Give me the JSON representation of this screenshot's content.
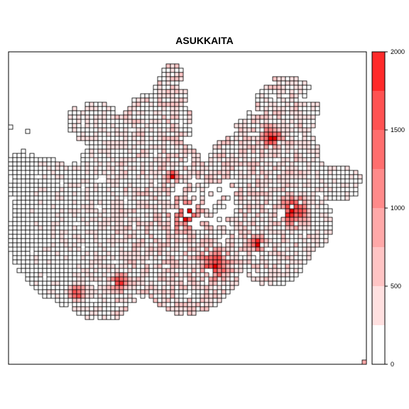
{
  "chart_data": {
    "type": "heatmap",
    "title": "ASUKKAITA",
    "grid": false,
    "legend_placement": "right",
    "scale": {
      "min": 0,
      "max": 2000,
      "ticks": [
        "0",
        "500",
        "1000",
        "1500",
        "2000"
      ],
      "bands": [
        {
          "from": 0,
          "to": 250,
          "color": "#ffffff"
        },
        {
          "from": 250,
          "to": 500,
          "color": "#ffe0e0"
        },
        {
          "from": 500,
          "to": 750,
          "color": "#ffc4c4"
        },
        {
          "from": 750,
          "to": 1000,
          "color": "#ffa8a8"
        },
        {
          "from": 1000,
          "to": 1250,
          "color": "#ff8a8a"
        },
        {
          "from": 1250,
          "to": 1500,
          "color": "#ff6e6e"
        },
        {
          "from": 1500,
          "to": 1750,
          "color": "#ff5252"
        },
        {
          "from": 1750,
          "to": 2000,
          "color": "#ff2a2a"
        }
      ]
    },
    "cell_outline_color": "#000000",
    "high_density_color": "#e60000"
  }
}
